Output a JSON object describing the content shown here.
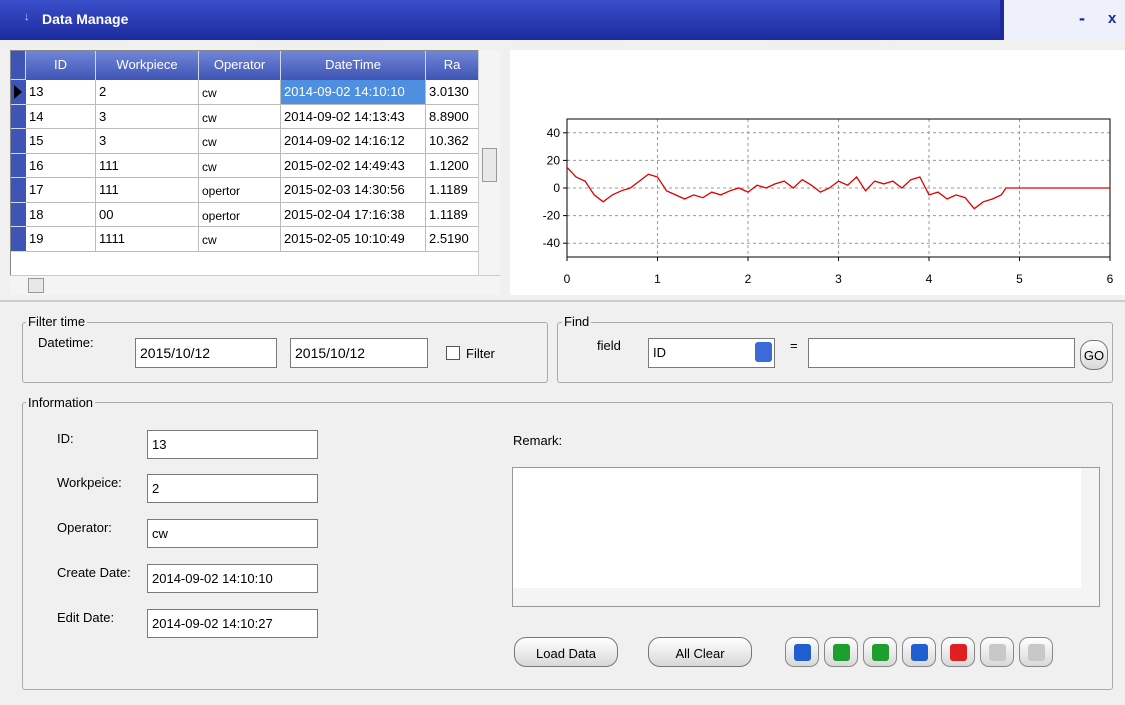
{
  "title_bar": {
    "title": "Data Manage",
    "minimize": "-",
    "close": "x"
  },
  "table": {
    "columns": [
      "ID",
      "Workpiece",
      "Operator",
      "DateTime",
      "Ra"
    ],
    "rows": [
      [
        "13",
        "2",
        "cw",
        "2014-09-02 14:10:10",
        "3.0130"
      ],
      [
        "14",
        "3",
        "cw",
        "2014-09-02 14:13:43",
        "8.8900"
      ],
      [
        "15",
        "3",
        "cw",
        "2014-09-02 14:16:12",
        "10.362"
      ],
      [
        "16",
        "111",
        "cw",
        "2015-02-02 14:49:43",
        "1.1200"
      ],
      [
        "17",
        "111",
        "opertor",
        "2015-02-03 14:30:56",
        "1.1189"
      ],
      [
        "18",
        "00",
        "opertor",
        "2015-02-04 17:16:38",
        "1.1189"
      ],
      [
        "19",
        "1111",
        "cw",
        "2015-02-05 10:10:49",
        "2.5190"
      ]
    ]
  },
  "chart_data": {
    "type": "line",
    "x": [
      0,
      0.1,
      0.2,
      0.3,
      0.4,
      0.5,
      0.6,
      0.7,
      0.8,
      0.9,
      1.0,
      1.1,
      1.2,
      1.3,
      1.4,
      1.5,
      1.6,
      1.7,
      1.8,
      1.9,
      2.0,
      2.1,
      2.2,
      2.3,
      2.4,
      2.5,
      2.6,
      2.7,
      2.8,
      2.9,
      3.0,
      3.1,
      3.2,
      3.3,
      3.4,
      3.5,
      3.6,
      3.7,
      3.8,
      3.9,
      4.0,
      4.1,
      4.2,
      4.3,
      4.4,
      4.5,
      4.6,
      4.7,
      4.8,
      4.85,
      6.0
    ],
    "series": [
      {
        "name": "Ra",
        "color": "#e00000",
        "values": [
          15,
          8,
          5,
          -5,
          -10,
          -5,
          -2,
          0,
          5,
          10,
          8,
          -2,
          -5,
          -8,
          -5,
          -7,
          -3,
          -5,
          -2,
          0,
          -3,
          2,
          0,
          3,
          5,
          0,
          6,
          2,
          -3,
          0,
          5,
          2,
          8,
          -2,
          5,
          3,
          5,
          0,
          6,
          8,
          -5,
          -3,
          -8,
          -5,
          -7,
          -15,
          -10,
          -8,
          -5,
          0,
          0
        ]
      }
    ],
    "xlim": [
      0,
      6
    ],
    "xticks": [
      0,
      1,
      2,
      3,
      4,
      5,
      6
    ],
    "ylim": [
      -50,
      50
    ],
    "yticks": [
      -40,
      -20,
      0,
      20,
      40
    ],
    "grid": true
  },
  "filter": {
    "legend": "Filter time",
    "datetime_label": "Datetime:",
    "from": "2015/10/12",
    "to": "2015/10/12",
    "checkbox_label": "Filter"
  },
  "find": {
    "legend": "Find",
    "field_label": "field",
    "field_value": "ID",
    "equals": "=",
    "button": "GO"
  },
  "information": {
    "legend": "Information",
    "fields": [
      {
        "label": "ID:",
        "value": "13"
      },
      {
        "label": "Workpeice:",
        "value": "2"
      },
      {
        "label": "Operator:",
        "value": "cw"
      },
      {
        "label": "Create Date:",
        "value": "2014-09-02 14:10:10"
      },
      {
        "label": "Edit Date:",
        "value": "2014-09-02 14:10:27"
      }
    ],
    "remark_label": "Remark:",
    "buttons": [
      "Load Data",
      "All Clear"
    ]
  }
}
